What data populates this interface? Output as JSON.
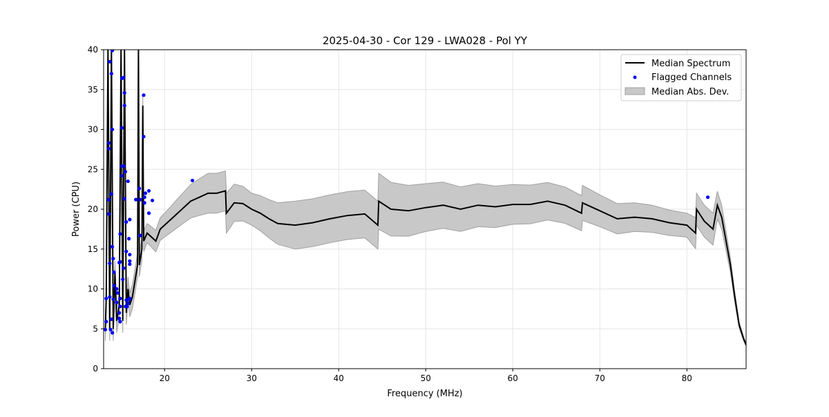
{
  "chart_data": {
    "type": "line",
    "title": "2025-04-30 - Cor 129 - LWA028 - Pol YY",
    "xlabel": "Frequency (MHz)",
    "ylabel": "Power (CPU)",
    "xlim": [
      13.0,
      86.8
    ],
    "ylim": [
      0,
      40
    ],
    "xticks": [
      20,
      30,
      40,
      50,
      60,
      70,
      80
    ],
    "yticks": [
      0,
      5,
      10,
      15,
      20,
      25,
      30,
      35,
      40
    ],
    "grid": true,
    "legend_position": "top-right",
    "legend": [
      "Median Spectrum",
      "Flagged Channels",
      "Median Abs. Dev."
    ],
    "colors": {
      "median": "#000000",
      "flagged": "#0000ff",
      "mad": "#c8c8c8",
      "mad_edge": "#a0a0a0"
    },
    "median_spectrum": [
      [
        13.2,
        5
      ],
      [
        13.3,
        9
      ],
      [
        13.5,
        40
      ],
      [
        13.7,
        5
      ],
      [
        13.9,
        40
      ],
      [
        14.1,
        5
      ],
      [
        14.3,
        12
      ],
      [
        14.5,
        6
      ],
      [
        14.8,
        8
      ],
      [
        15.0,
        40
      ],
      [
        15.2,
        6
      ],
      [
        15.4,
        40
      ],
      [
        15.6,
        7
      ],
      [
        15.8,
        10
      ],
      [
        16.0,
        8
      ],
      [
        16.3,
        9
      ],
      [
        16.6,
        11
      ],
      [
        16.9,
        13
      ],
      [
        17.0,
        40
      ],
      [
        17.1,
        13
      ],
      [
        17.4,
        15
      ],
      [
        17.5,
        33
      ],
      [
        17.6,
        16
      ],
      [
        18.0,
        17
      ],
      [
        18.5,
        16.5
      ],
      [
        19.0,
        16
      ],
      [
        19.5,
        17.5
      ],
      [
        20,
        18
      ],
      [
        21,
        19
      ],
      [
        22,
        20
      ],
      [
        23,
        21
      ],
      [
        24,
        21.5
      ],
      [
        25,
        22
      ],
      [
        26,
        22
      ],
      [
        27,
        22.3
      ],
      [
        27.1,
        19.5
      ],
      [
        28,
        20.8
      ],
      [
        29,
        20.7
      ],
      [
        30,
        20
      ],
      [
        31,
        19.5
      ],
      [
        32,
        18.8
      ],
      [
        33,
        18.2
      ],
      [
        35,
        18
      ],
      [
        37,
        18.3
      ],
      [
        39,
        18.8
      ],
      [
        41,
        19.2
      ],
      [
        43,
        19.4
      ],
      [
        44.5,
        18
      ],
      [
        44.6,
        21
      ],
      [
        46,
        20
      ],
      [
        48,
        19.8
      ],
      [
        50,
        20.2
      ],
      [
        52,
        20.5
      ],
      [
        54,
        20
      ],
      [
        56,
        20.5
      ],
      [
        58,
        20.3
      ],
      [
        60,
        20.6
      ],
      [
        62,
        20.6
      ],
      [
        64,
        21
      ],
      [
        66,
        20.5
      ],
      [
        67.9,
        19.5
      ],
      [
        68,
        20.8
      ],
      [
        70,
        19.8
      ],
      [
        72,
        18.8
      ],
      [
        74,
        19
      ],
      [
        76,
        18.8
      ],
      [
        78,
        18.3
      ],
      [
        80,
        18
      ],
      [
        81,
        17
      ],
      [
        81.1,
        20
      ],
      [
        82,
        18.5
      ],
      [
        83,
        17.5
      ],
      [
        83.5,
        20.5
      ],
      [
        84,
        19
      ],
      [
        85,
        13
      ],
      [
        85.5,
        9
      ],
      [
        86,
        5.5
      ],
      [
        86.5,
        3.8
      ],
      [
        86.8,
        3
      ]
    ],
    "median_abs_dev": [
      [
        13.2,
        1.5
      ],
      [
        17,
        1.5
      ],
      [
        18,
        1.2
      ],
      [
        20,
        1.5
      ],
      [
        25,
        2.5
      ],
      [
        27,
        2.5
      ],
      [
        27.1,
        2.5
      ],
      [
        30,
        2
      ],
      [
        35,
        3
      ],
      [
        40,
        3
      ],
      [
        44.5,
        3
      ],
      [
        44.6,
        3.5
      ],
      [
        50,
        3
      ],
      [
        60,
        2.5
      ],
      [
        68,
        2.2
      ],
      [
        70,
        2
      ],
      [
        80,
        1.5
      ],
      [
        81.1,
        2
      ],
      [
        83,
        2
      ],
      [
        84,
        1.5
      ],
      [
        86,
        0.4
      ],
      [
        86.8,
        0.2
      ]
    ],
    "flagged_channels": [
      [
        14.0,
        39.9
      ],
      [
        13.7,
        38.5
      ],
      [
        13.9,
        37.0
      ],
      [
        14.0,
        30.0
      ],
      [
        13.6,
        28.3
      ],
      [
        13.6,
        27.6
      ],
      [
        13.9,
        21.9
      ],
      [
        13.6,
        21.2
      ],
      [
        13.6,
        19.4
      ],
      [
        14.0,
        15.3
      ],
      [
        13.7,
        13.2
      ],
      [
        14.1,
        13.8
      ],
      [
        14.2,
        12.1
      ],
      [
        14.2,
        10.4
      ],
      [
        13.3,
        8.8
      ],
      [
        13.7,
        9.0
      ],
      [
        14.1,
        8.7
      ],
      [
        13.3,
        5.9
      ],
      [
        13.9,
        6.2
      ],
      [
        13.2,
        4.9
      ],
      [
        13.8,
        4.9
      ],
      [
        14.0,
        4.5
      ],
      [
        14.5,
        10.0
      ],
      [
        14.6,
        9.5
      ],
      [
        14.5,
        8.3
      ],
      [
        14.9,
        8.8
      ],
      [
        14.9,
        7.8
      ],
      [
        14.8,
        7.0
      ],
      [
        14.8,
        6.3
      ],
      [
        14.9,
        5.9
      ],
      [
        14.9,
        16.9
      ],
      [
        14.8,
        13.3
      ],
      [
        14.9,
        13.4
      ],
      [
        15.2,
        11.2
      ],
      [
        15.3,
        12.6
      ],
      [
        15.1,
        30.2
      ],
      [
        15.1,
        36.4
      ],
      [
        15.3,
        36.5
      ],
      [
        15.4,
        34.6
      ],
      [
        15.4,
        33.0
      ],
      [
        15.1,
        25.4
      ],
      [
        15.3,
        25.4
      ],
      [
        15.1,
        24.2
      ],
      [
        15.5,
        24.7
      ],
      [
        15.4,
        21.3
      ],
      [
        15.8,
        23.5
      ],
      [
        15.6,
        18.4
      ],
      [
        16.0,
        18.7
      ],
      [
        15.9,
        16.3
      ],
      [
        15.6,
        14.7
      ],
      [
        16.0,
        14.3
      ],
      [
        16.0,
        13.5
      ],
      [
        16.0,
        13.1
      ],
      [
        15.5,
        7.8
      ],
      [
        15.7,
        7.8
      ],
      [
        15.8,
        8.2
      ],
      [
        15.9,
        8.7
      ],
      [
        16.0,
        8.8
      ],
      [
        15.6,
        8.6
      ],
      [
        16.7,
        21.2
      ],
      [
        17.1,
        22.6
      ],
      [
        17.2,
        21.2
      ],
      [
        17.2,
        16.7
      ],
      [
        17.6,
        34.3
      ],
      [
        17.6,
        29.1
      ],
      [
        17.7,
        21.5
      ],
      [
        17.7,
        20.8
      ],
      [
        17.8,
        22.0
      ],
      [
        18.2,
        22.3
      ],
      [
        18.2,
        19.5
      ],
      [
        18.6,
        21.1
      ],
      [
        23.2,
        23.6
      ],
      [
        82.4,
        21.5
      ]
    ]
  }
}
